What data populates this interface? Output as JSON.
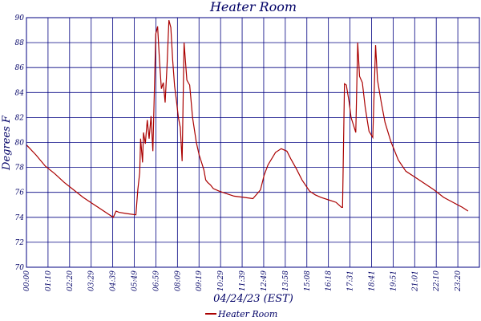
{
  "chart_data": {
    "type": "line",
    "title": "Heater Room",
    "xlabel": "04/24/23 (EST)",
    "ylabel": "Degrees F",
    "ylim": [
      70,
      90
    ],
    "yticks": [
      "70",
      "72",
      "74",
      "76",
      "78",
      "80",
      "82",
      "84",
      "86",
      "88",
      "90"
    ],
    "xticks": [
      "00:00",
      "01:10",
      "02:20",
      "03:29",
      "04:39",
      "05:49",
      "06:59",
      "08:09",
      "09:19",
      "10:29",
      "11:39",
      "12:49",
      "13:58",
      "15:08",
      "16:18",
      "17:31",
      "18:41",
      "19:51",
      "21:01",
      "22:10",
      "23:20"
    ],
    "grid": true,
    "legend": {
      "position": "bottom",
      "label": "Heater Room"
    },
    "colors": {
      "series": "#aa0000",
      "grid": "#000080",
      "text": "#000066"
    },
    "series": [
      {
        "name": "Heater Room",
        "x_hours": [
          0,
          0.5,
          1.0,
          1.5,
          2.0,
          2.5,
          3.0,
          3.5,
          4.0,
          4.4,
          4.6,
          4.75,
          4.9,
          5.3,
          5.8,
          5.9,
          6.0,
          6.05,
          6.15,
          6.2,
          6.3,
          6.4,
          6.5,
          6.6,
          6.7,
          6.85,
          6.95,
          7.05,
          7.15,
          7.25,
          7.35,
          7.45,
          7.55,
          7.65,
          7.75,
          7.85,
          7.95,
          8.05,
          8.15,
          8.25,
          8.35,
          8.5,
          8.65,
          8.8,
          9.0,
          9.15,
          9.3,
          9.4,
          9.5,
          9.6,
          9.75,
          9.9,
          10.2,
          10.6,
          11.0,
          11.5,
          12.0,
          12.4,
          12.6,
          12.8,
          13.2,
          13.5,
          13.8,
          14.0,
          14.3,
          14.6,
          15.0,
          15.3,
          15.6,
          16.0,
          16.4,
          16.7,
          16.75,
          16.85,
          16.95,
          17.1,
          17.2,
          17.35,
          17.45,
          17.55,
          17.65,
          17.8,
          17.95,
          18.15,
          18.35,
          18.5,
          18.6,
          18.8,
          19.0,
          19.3,
          19.7,
          20.1,
          20.6,
          21.1,
          21.6,
          22.1,
          22.6,
          23.1,
          23.4
        ],
        "values": [
          79.8,
          79.0,
          78.1,
          77.5,
          76.8,
          76.2,
          75.6,
          75.1,
          74.6,
          74.2,
          74.0,
          74.5,
          74.4,
          74.3,
          74.2,
          76.2,
          77.6,
          80.3,
          78.4,
          80.8,
          79.9,
          81.8,
          80.3,
          82.1,
          79.3,
          88.7,
          89.3,
          86.5,
          84.3,
          84.8,
          83.2,
          86.2,
          89.8,
          89.2,
          86.6,
          84.5,
          83.3,
          82.0,
          81.2,
          78.5,
          88.0,
          85.0,
          84.6,
          82.0,
          80.0,
          79.0,
          78.3,
          77.8,
          77.0,
          76.8,
          76.6,
          76.3,
          76.1,
          75.9,
          75.7,
          75.6,
          75.5,
          76.2,
          77.4,
          78.2,
          79.2,
          79.5,
          79.3,
          78.7,
          77.9,
          77.0,
          76.1,
          75.8,
          75.6,
          75.4,
          75.2,
          74.8,
          74.8,
          84.7,
          84.6,
          83.2,
          82.0,
          81.3,
          80.8,
          88.0,
          85.3,
          84.8,
          82.8,
          80.9,
          80.4,
          87.8,
          85.0,
          83.2,
          81.6,
          80.1,
          78.6,
          77.7,
          77.2,
          76.7,
          76.2,
          75.6,
          75.2,
          74.8,
          74.5
        ]
      }
    ]
  }
}
